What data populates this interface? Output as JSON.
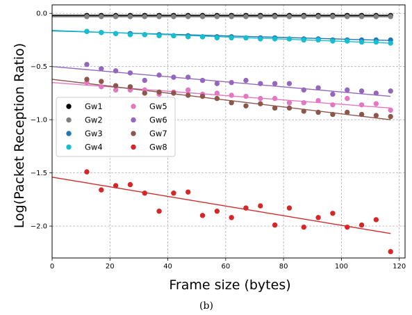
{
  "chart_data": {
    "type": "scatter",
    "title": "",
    "xlabel": "Frame size (bytes)",
    "ylabel": "Log(Packet Reception Ratio)",
    "caption": "(b)",
    "xlim": [
      0,
      122
    ],
    "ylim": [
      -2.3,
      0.08
    ],
    "xticks": [
      0,
      20,
      40,
      60,
      80,
      100,
      120
    ],
    "yticks": [
      0.0,
      -0.5,
      -1.0,
      -1.5,
      -2.0
    ],
    "xtick_labels": [
      "0",
      "20",
      "40",
      "60",
      "80",
      "100",
      "120"
    ],
    "ytick_labels": [
      "0.0",
      "−0.5",
      "−1.0",
      "−1.5",
      "−2.0"
    ],
    "grid": true,
    "legend": {
      "position": "center-left",
      "columns": 2
    },
    "x": [
      12,
      17,
      22,
      27,
      32,
      37,
      42,
      47,
      52,
      57,
      62,
      67,
      72,
      77,
      82,
      87,
      92,
      97,
      102,
      107,
      112,
      117
    ],
    "series": [
      {
        "name": "Gw1",
        "color": "#000000",
        "values": [
          -0.02,
          -0.02,
          -0.02,
          -0.02,
          -0.02,
          -0.02,
          -0.02,
          -0.02,
          -0.02,
          -0.02,
          -0.02,
          -0.02,
          -0.02,
          -0.02,
          -0.02,
          -0.02,
          -0.02,
          -0.02,
          -0.02,
          -0.02,
          -0.02,
          -0.02
        ],
        "fit": [
          [
            0,
            -0.02
          ],
          [
            117,
            -0.02
          ]
        ]
      },
      {
        "name": "Gw2",
        "color": "#7f7f7f",
        "values": [
          -0.03,
          -0.03,
          -0.03,
          -0.03,
          -0.03,
          -0.03,
          -0.03,
          -0.03,
          -0.03,
          -0.03,
          -0.03,
          -0.03,
          -0.03,
          -0.03,
          -0.03,
          -0.03,
          -0.03,
          -0.03,
          -0.03,
          -0.03,
          -0.03,
          -0.03
        ],
        "fit": [
          [
            0,
            -0.03
          ],
          [
            117,
            -0.03
          ]
        ]
      },
      {
        "name": "Gw3",
        "color": "#1f77b4",
        "values": [
          -0.17,
          -0.18,
          -0.19,
          -0.19,
          -0.2,
          -0.2,
          -0.21,
          -0.21,
          -0.22,
          -0.22,
          -0.22,
          -0.23,
          -0.23,
          -0.23,
          -0.24,
          -0.24,
          -0.24,
          -0.25,
          -0.25,
          -0.25,
          -0.25,
          -0.25
        ],
        "fit": [
          [
            0,
            -0.165
          ],
          [
            117,
            -0.255
          ]
        ]
      },
      {
        "name": "Gw4",
        "color": "#17becf",
        "values": [
          -0.17,
          -0.18,
          -0.19,
          -0.2,
          -0.2,
          -0.21,
          -0.21,
          -0.22,
          -0.22,
          -0.23,
          -0.23,
          -0.23,
          -0.24,
          -0.24,
          -0.24,
          -0.25,
          -0.25,
          -0.26,
          -0.26,
          -0.27,
          -0.27,
          -0.28
        ],
        "fit": [
          [
            0,
            -0.16
          ],
          [
            117,
            -0.28
          ]
        ]
      },
      {
        "name": "Gw5",
        "color": "#e377c2",
        "values": [
          -0.65,
          -0.69,
          -0.72,
          -0.72,
          -0.72,
          -0.76,
          -0.74,
          -0.72,
          -0.76,
          -0.75,
          -0.77,
          -0.78,
          -0.8,
          -0.8,
          -0.84,
          -0.84,
          -0.82,
          -0.86,
          -0.8,
          -0.86,
          -0.85,
          -0.91
        ],
        "fit": [
          [
            0,
            -0.65
          ],
          [
            117,
            -0.89
          ]
        ]
      },
      {
        "name": "Gw6",
        "color": "#9467bd",
        "values": [
          -0.48,
          -0.52,
          -0.54,
          -0.56,
          -0.63,
          -0.58,
          -0.6,
          -0.6,
          -0.63,
          -0.66,
          -0.65,
          -0.63,
          -0.66,
          -0.66,
          -0.66,
          -0.72,
          -0.7,
          -0.76,
          -0.72,
          -0.73,
          -0.75,
          -0.73
        ],
        "fit": [
          [
            0,
            -0.5
          ],
          [
            117,
            -0.78
          ]
        ]
      },
      {
        "name": "Gw7",
        "color": "#8c564b",
        "values": [
          -0.62,
          -0.64,
          -0.68,
          -0.69,
          -0.75,
          -0.74,
          -0.75,
          -0.77,
          -0.78,
          -0.8,
          -0.84,
          -0.87,
          -0.85,
          -0.89,
          -0.89,
          -0.92,
          -0.93,
          -0.95,
          -0.93,
          -0.95,
          -0.96,
          -0.97
        ],
        "fit": [
          [
            0,
            -0.62
          ],
          [
            117,
            -1.0
          ]
        ]
      },
      {
        "name": "Gw8",
        "color": "#d62728",
        "values": [
          -1.49,
          -1.66,
          -1.62,
          -1.61,
          -1.69,
          -1.86,
          -1.69,
          -1.68,
          -1.9,
          -1.86,
          -1.92,
          -1.83,
          -1.81,
          -1.99,
          -1.83,
          -2.01,
          -1.92,
          -1.88,
          -2.01,
          -1.99,
          -1.94,
          -2.24
        ],
        "fit": [
          [
            0,
            -1.54
          ],
          [
            117,
            -2.07
          ]
        ]
      }
    ]
  }
}
